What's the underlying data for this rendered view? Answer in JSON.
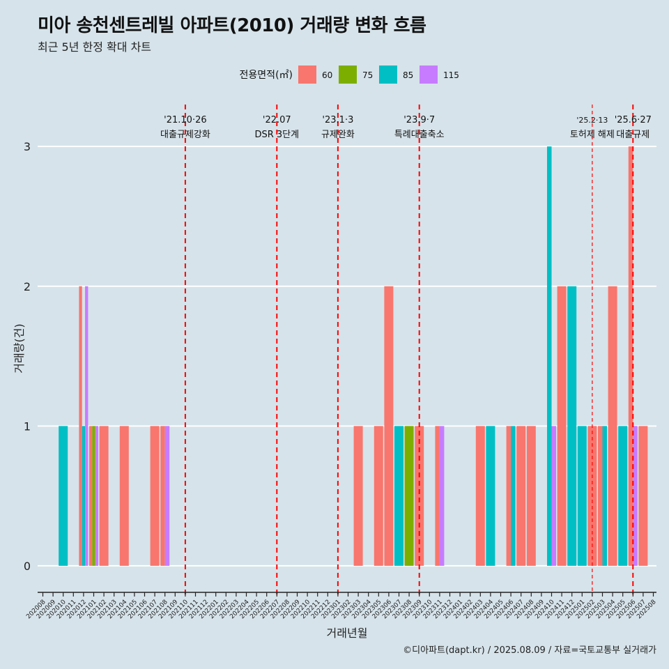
{
  "title": "미아 송천센트레빌 아파트(2010) 거래량 변화 흐름",
  "subtitle": "최근 5년 한정 확대 차트",
  "footer": "©디아파트(dapt.kr) / 2025.08.09 / 자료=국토교통부 실거래가",
  "colors": {
    "60": "#f8766d",
    "75": "#7cae00",
    "85": "#00bfc4",
    "115": "#c77cff",
    "event_line": "#ff0000",
    "grid": "#ffffff"
  },
  "chart_data": {
    "type": "bar",
    "title": "미아 송천센트레빌 아파트(2010) 거래량 변화 흐름",
    "xlabel": "거래년월",
    "ylabel": "거래량(건)",
    "ylim": [
      -0.15,
      3.3
    ],
    "yticks": [
      0,
      1,
      2,
      3
    ],
    "legend_title": "전용면적(㎡)",
    "legend_position": "top",
    "series_names": [
      "60",
      "75",
      "85",
      "115"
    ],
    "categories": [
      "202008",
      "202009",
      "202010",
      "202011",
      "202012",
      "202101",
      "202102",
      "202103",
      "202104",
      "202105",
      "202106",
      "202107",
      "202108",
      "202109",
      "202110",
      "202111",
      "202112",
      "202201",
      "202202",
      "202203",
      "202204",
      "202205",
      "202206",
      "202207",
      "202208",
      "202209",
      "202210",
      "202211",
      "202212",
      "202301",
      "202302",
      "202303",
      "202304",
      "202305",
      "202306",
      "202307",
      "202308",
      "202309",
      "202310",
      "202311",
      "202312",
      "202401",
      "202402",
      "202403",
      "202404",
      "202405",
      "202406",
      "202407",
      "202408",
      "202409",
      "202410",
      "202411",
      "202412",
      "202501",
      "202502",
      "202503",
      "202504",
      "202505",
      "202506",
      "202507",
      "202508"
    ],
    "bars": [
      {
        "month": "202010",
        "values": {
          "85": 1
        }
      },
      {
        "month": "202012",
        "values": {
          "60": 2,
          "85": 1,
          "115": 2
        }
      },
      {
        "month": "202101",
        "values": {
          "60": 1,
          "75": 1,
          "115": 1
        }
      },
      {
        "month": "202102",
        "values": {
          "60": 1
        }
      },
      {
        "month": "202104",
        "values": {
          "60": 1
        }
      },
      {
        "month": "202107",
        "values": {
          "60": 1
        }
      },
      {
        "month": "202108",
        "values": {
          "60": 1,
          "115": 1
        }
      },
      {
        "month": "202303",
        "values": {
          "60": 1
        }
      },
      {
        "month": "202305",
        "values": {
          "60": 1
        }
      },
      {
        "month": "202306",
        "values": {
          "60": 2
        }
      },
      {
        "month": "202307",
        "values": {
          "85": 1
        }
      },
      {
        "month": "202308",
        "values": {
          "75": 1
        }
      },
      {
        "month": "202309",
        "values": {
          "60": 1
        }
      },
      {
        "month": "202311",
        "values": {
          "60": 1,
          "115": 1
        }
      },
      {
        "month": "202403",
        "values": {
          "60": 1
        }
      },
      {
        "month": "202404",
        "values": {
          "85": 1
        }
      },
      {
        "month": "202406",
        "values": {
          "60": 1,
          "85": 1
        }
      },
      {
        "month": "202407",
        "values": {
          "60": 1
        }
      },
      {
        "month": "202408",
        "values": {
          "60": 1
        }
      },
      {
        "month": "202410",
        "values": {
          "85": 3,
          "115": 1
        }
      },
      {
        "month": "202411",
        "values": {
          "60": 2
        }
      },
      {
        "month": "202412",
        "values": {
          "85": 2
        }
      },
      {
        "month": "202501",
        "values": {
          "85": 1
        }
      },
      {
        "month": "202502",
        "values": {
          "60": 1
        }
      },
      {
        "month": "202503",
        "values": {
          "60": 1,
          "85": 1
        }
      },
      {
        "month": "202504",
        "values": {
          "60": 2
        }
      },
      {
        "month": "202505",
        "values": {
          "85": 1
        }
      },
      {
        "month": "202506",
        "values": {
          "60": 3,
          "115": 1
        }
      },
      {
        "month": "202507",
        "values": {
          "60": 1
        }
      }
    ],
    "events": [
      {
        "month": "202110",
        "date": "'21.10·26",
        "label": "대출규제강화",
        "dashed": "heavy"
      },
      {
        "month": "202207",
        "date": "'22.07",
        "label": "DSR 3단계",
        "dashed": "heavy"
      },
      {
        "month": "202301",
        "date": "'23.1·3",
        "label": "규제완화",
        "dashed": "heavy"
      },
      {
        "month": "202309",
        "date": "'23.9·7",
        "label": "특례대출축소",
        "dashed": "heavy"
      },
      {
        "month": "202502",
        "date": "'25.2·13",
        "label": "토허제 해제",
        "dashed": "light"
      },
      {
        "month": "202506",
        "date": "'25.6·27",
        "label": "대출규제",
        "dashed": "heavy"
      }
    ]
  }
}
